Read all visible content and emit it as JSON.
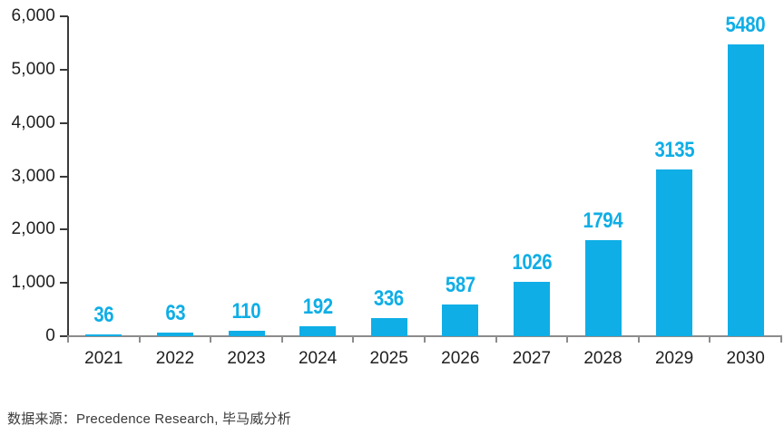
{
  "chart_data": {
    "type": "bar",
    "categories": [
      "2021",
      "2022",
      "2023",
      "2024",
      "2025",
      "2026",
      "2027",
      "2028",
      "2029",
      "2030"
    ],
    "values": [
      36,
      63,
      110,
      192,
      336,
      587,
      1026,
      1794,
      3135,
      5480
    ],
    "value_labels": [
      "36",
      "63",
      "110",
      "192",
      "336",
      "587",
      "1026",
      "1794",
      "3135",
      "5480"
    ],
    "title": "",
    "xlabel": "",
    "ylabel": "",
    "ylim": [
      0,
      6000
    ],
    "yticks": [
      0,
      1000,
      2000,
      3000,
      4000,
      5000,
      6000
    ],
    "ytick_labels": [
      "0",
      "1,000",
      "2,000",
      "3,000",
      "4,000",
      "5,000",
      "6,000"
    ],
    "grid": false,
    "legend": "none",
    "bar_color": "#0FAEE6",
    "value_label_color": "#0FAEE6",
    "y_axis_color": "#3b3b3b",
    "x_axis_color": "#8c8c8c",
    "tick_label_color": "#1f1f1f"
  },
  "source_note": "数据来源：Precedence Research, 毕马威分析"
}
